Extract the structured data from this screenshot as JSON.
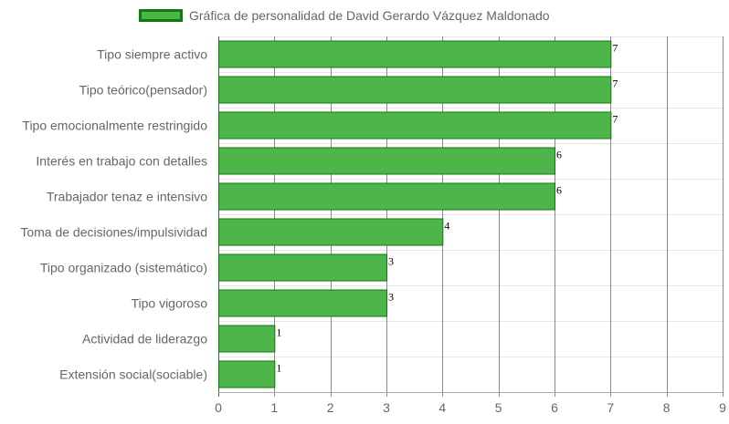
{
  "chart_data": {
    "type": "bar",
    "orientation": "horizontal",
    "categories": [
      "Tipo siempre activo",
      "Tipo teórico(pensador)",
      "Tipo emocionalmente restringido",
      "Interés en trabajo con detalles",
      "Trabajador tenaz e intensivo",
      "Toma de decisiones/impulsividad",
      "Tipo organizado (sistemático)",
      "Tipo vigoroso",
      "Actividad de liderazgo",
      "Extensión social(sociable)"
    ],
    "series": [
      {
        "name": "Gráfica de personalidad de David Gerardo Vázquez Maldonado",
        "values": [
          7,
          7,
          7,
          6,
          6,
          4,
          3,
          3,
          1,
          1
        ]
      }
    ],
    "xlim": [
      0,
      9
    ],
    "x_ticks": [
      0,
      1,
      2,
      3,
      4,
      5,
      6,
      7,
      8,
      9
    ],
    "grid": true,
    "legend_position": "top",
    "data_labels": true,
    "bar_color": "#4db54a",
    "bar_border_color": "#0f7a0f",
    "grid_color": "#888888"
  }
}
